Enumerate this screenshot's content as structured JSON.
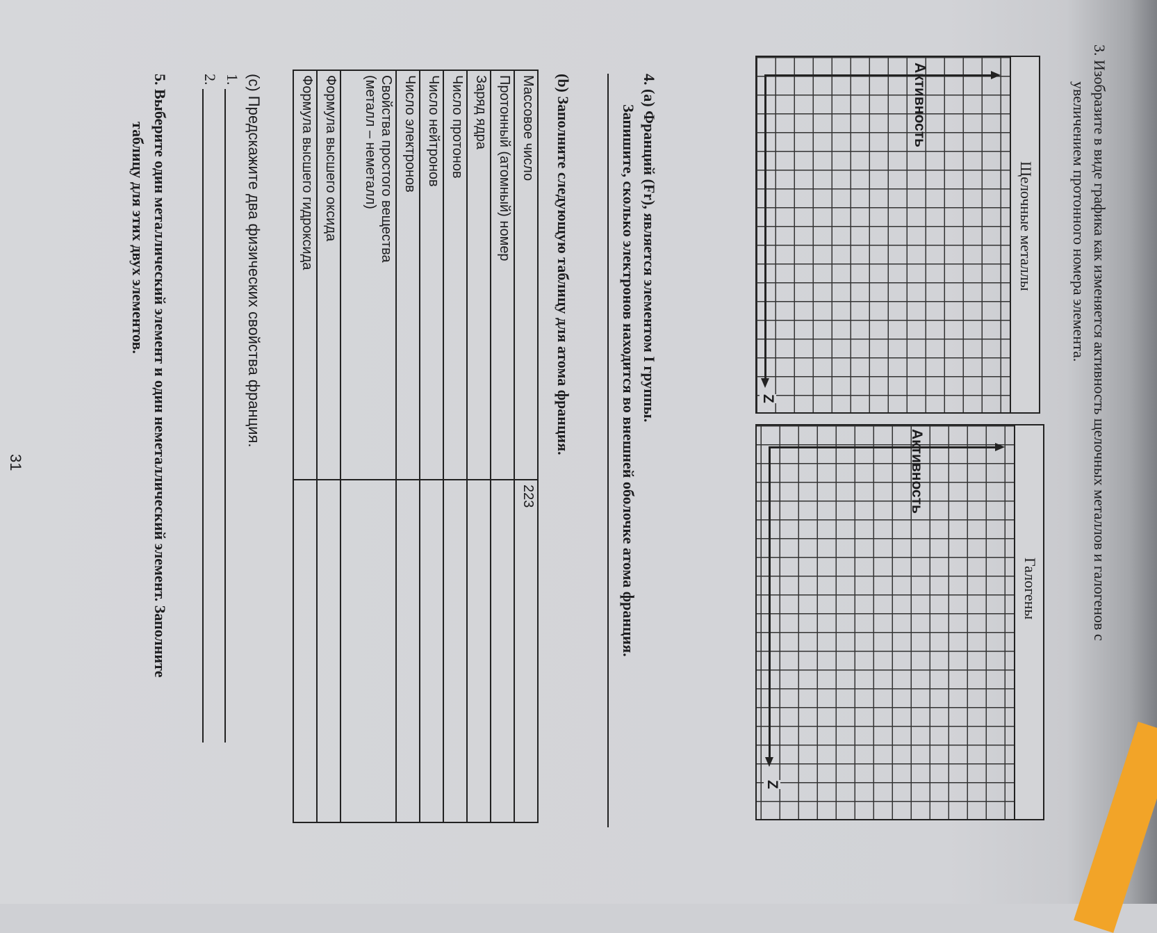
{
  "q3": {
    "line1": "3. Изобразите в виде графика как изменяется активность щелочных металлов и галогенов с",
    "line2": "увеличением протонного номера элемента.",
    "graph1": {
      "header": "Щелочные металлы",
      "y_label": "Активность",
      "x_label": "Z"
    },
    "graph2": {
      "header": "Галогены",
      "y_label": "Активность",
      "x_label": "Z"
    }
  },
  "q4": {
    "a_line1": "4. (a) Франций (Fr), является элементом I группы.",
    "a_line2": "Запишите, сколько электронов находится во внешней оболочке атома франция.",
    "b_title": "(b) Заполните следующую таблицу для атома франция.",
    "table": [
      {
        "label": "Массовое число",
        "value": "223"
      },
      {
        "label": "Протонный (атомный) номер",
        "value": ""
      },
      {
        "label": "Заряд ядра",
        "value": ""
      },
      {
        "label": "Число протонов",
        "value": ""
      },
      {
        "label": "Число нейтронов",
        "value": ""
      },
      {
        "label": "Число электронов",
        "value": ""
      },
      {
        "label": "Свойства простого вещества",
        "label2": "(металл – неметалл)",
        "value": ""
      },
      {
        "label": "Формула высшего оксида",
        "value": ""
      },
      {
        "label": "Формула высшего гидроксида",
        "value": ""
      }
    ],
    "c_title": "(c) Предскажите два физических свойства франция.",
    "c_item1": "1.",
    "c_item2": "2."
  },
  "q5": {
    "line1": "5. Выберите один металлический элемент и один неметаллический элемент. Заполните",
    "line2": "таблицу для этих двух элементов."
  },
  "page_number": "31",
  "colors": {
    "paper": "#d6d7da",
    "ink": "#1c1c1e",
    "pencil": "#f2a428"
  }
}
